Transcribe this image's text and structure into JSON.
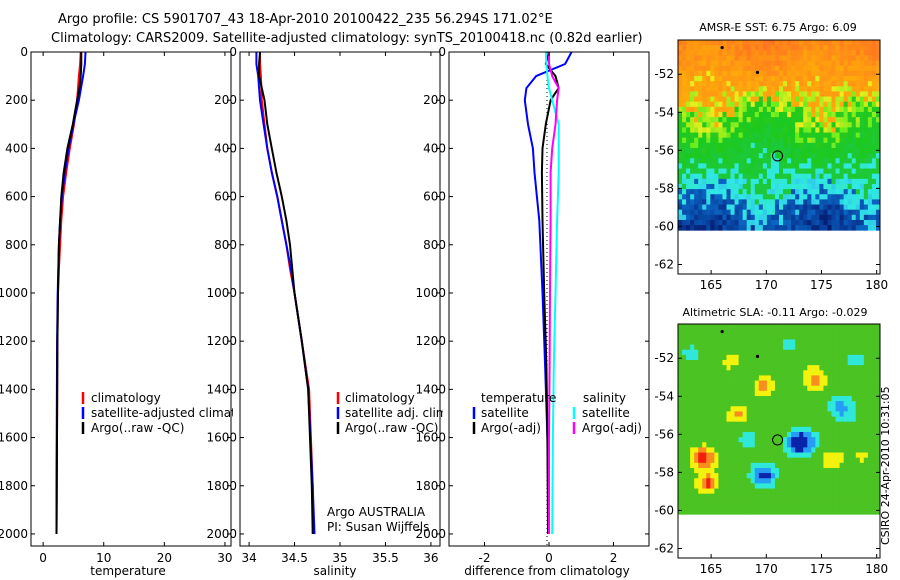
{
  "title": {
    "line1": "Argo profile: CS 5901707_43 18-Apr-2010 20100422_235 56.294S 171.02°E",
    "line2": "Climatology: CARS2009. Satellite-adjusted climatology: synTS_20100418.nc (0.82d earlier)"
  },
  "colors": {
    "climatology": "#ff0000",
    "satellite": "#0000ff",
    "argo": "#000000",
    "satellite_salinity": "#00ffff",
    "argo_salinity_diff": "#ff00ff",
    "frame": "#000000"
  },
  "depth_axis": {
    "ticks": [
      "0",
      "200",
      "400",
      "600",
      "800",
      "1000",
      "1200",
      "1400",
      "1600",
      "1800",
      "2000"
    ]
  },
  "footer": {
    "operator": "Argo AUSTRALIA",
    "pi": "PI: Susan Wijffels",
    "stamp": "CSIRO 24-Apr-2010 10:31:05"
  },
  "chart_data": [
    {
      "id": "temperature",
      "type": "line",
      "xlabel": "temperature",
      "ylabel": "",
      "xlim": [
        -2,
        31
      ],
      "ylim": [
        0,
        2050
      ],
      "y_inverted": true,
      "xticks": [
        "0",
        "10",
        "20",
        "30"
      ],
      "legend": {
        "placement": "bottom",
        "entries": [
          "climatology",
          "satellite-adjusted climatology",
          "Argo(..raw -QC)"
        ]
      },
      "series": [
        {
          "name": "climatology",
          "color_key": "climatology",
          "x": [
            6.2,
            6.1,
            5.9,
            5.6,
            5.1,
            4.4,
            3.8,
            3.3,
            3.0,
            2.8,
            2.6,
            2.45,
            2.35,
            2.3,
            2.25,
            2.2
          ],
          "y": [
            0,
            50,
            100,
            200,
            300,
            400,
            500,
            600,
            700,
            800,
            900,
            1000,
            1200,
            1500,
            1800,
            2000
          ]
        },
        {
          "name": "satellite-adjusted climatology",
          "color_key": "satellite",
          "x": [
            7.0,
            6.9,
            6.6,
            5.9,
            5.0,
            4.2,
            3.6,
            3.1,
            2.8,
            2.6,
            2.5,
            2.4,
            2.3,
            2.25,
            2.2,
            2.2
          ],
          "y": [
            0,
            50,
            100,
            200,
            300,
            400,
            500,
            600,
            700,
            800,
            900,
            1000,
            1200,
            1500,
            1800,
            2000
          ]
        },
        {
          "name": "Argo(..raw -QC)",
          "color_key": "argo",
          "x": [
            6.3,
            6.3,
            6.2,
            6.0,
            5.6,
            4.9,
            4.0,
            3.4,
            3.0,
            2.8,
            2.6,
            2.45,
            2.35,
            2.3,
            2.25,
            2.2
          ],
          "y": [
            0,
            50,
            100,
            150,
            200,
            300,
            400,
            500,
            600,
            700,
            800,
            1000,
            1200,
            1500,
            1800,
            2000
          ]
        }
      ]
    },
    {
      "id": "salinity",
      "type": "line",
      "xlabel": "salinity",
      "ylabel": "",
      "xlim": [
        33.9,
        36.1
      ],
      "ylim": [
        0,
        2050
      ],
      "y_inverted": true,
      "xticks": [
        "34",
        "34.5",
        "35",
        "35.5",
        "36"
      ],
      "legend": {
        "placement": "bottom",
        "entries": [
          "climatology",
          "satellite adj. clim.",
          "Argo(..raw -QC)"
        ]
      },
      "series": [
        {
          "name": "climatology",
          "color_key": "climatology",
          "x": [
            34.12,
            34.12,
            34.13,
            34.14,
            34.17,
            34.2,
            34.25,
            34.31,
            34.36,
            34.41,
            34.45,
            34.5,
            34.58,
            34.66,
            34.7,
            34.71
          ],
          "y": [
            0,
            50,
            100,
            200,
            300,
            400,
            500,
            600,
            700,
            800,
            900,
            1000,
            1200,
            1400,
            1800,
            2000
          ]
        },
        {
          "name": "satellite adj. clim.",
          "color_key": "satellite",
          "x": [
            34.08,
            34.08,
            34.1,
            34.12,
            34.16,
            34.2,
            34.25,
            34.31,
            34.36,
            34.41,
            34.46,
            34.5,
            34.58,
            34.65,
            34.7,
            34.72
          ],
          "y": [
            0,
            50,
            100,
            200,
            300,
            400,
            500,
            600,
            700,
            800,
            900,
            1000,
            1200,
            1400,
            1800,
            2000
          ]
        },
        {
          "name": "Argo(..raw -QC)",
          "color_key": "argo",
          "x": [
            34.12,
            34.11,
            34.11,
            34.14,
            34.17,
            34.2,
            34.25,
            34.3,
            34.36,
            34.41,
            34.45,
            34.5,
            34.58,
            34.65,
            34.69,
            34.7
          ],
          "y": [
            0,
            50,
            100,
            150,
            200,
            300,
            400,
            500,
            600,
            700,
            800,
            1000,
            1200,
            1400,
            1800,
            2000
          ]
        }
      ]
    },
    {
      "id": "difference",
      "type": "line",
      "xlabel": "difference from climatology",
      "ylabel": "",
      "xlim": [
        -3.1,
        3.1
      ],
      "ylim": [
        0,
        2050
      ],
      "y_inverted": true,
      "xticks": [
        "-2",
        "0",
        "2"
      ],
      "legend": {
        "placement": "bottom",
        "headers": [
          "temperature",
          "salinity"
        ],
        "entries": [
          "satellite",
          "Argo(-adj)",
          "satellite",
          "Argo(-adj)"
        ]
      },
      "series": [
        {
          "name": "temperature satellite",
          "color_key": "satellite",
          "x": [
            0.7,
            0.5,
            -0.4,
            -0.7,
            -0.75,
            -0.65,
            -0.5,
            -0.45,
            -0.3,
            -0.2,
            -0.12,
            -0.05,
            0.0
          ],
          "y": [
            0,
            50,
            100,
            150,
            200,
            300,
            400,
            500,
            700,
            1000,
            1300,
            1600,
            2000
          ]
        },
        {
          "name": "temperature Argo(-adj)",
          "color_key": "argo",
          "x": [
            0.0,
            -0.1,
            0.2,
            0.3,
            0.05,
            -0.1,
            -0.2,
            -0.22,
            -0.2,
            -0.15,
            -0.08,
            -0.05,
            -0.03
          ],
          "y": [
            0,
            50,
            100,
            150,
            200,
            300,
            400,
            500,
            700,
            1000,
            1300,
            1600,
            2000
          ]
        },
        {
          "name": "salinity satellite",
          "color_key": "satellite_salinity",
          "x": [
            -0.1,
            -0.08,
            -0.05,
            0.0,
            0.1,
            0.3,
            0.3,
            0.3,
            0.25,
            0.2,
            0.15,
            0.12,
            0.1
          ],
          "y": [
            0,
            50,
            100,
            150,
            200,
            300,
            400,
            500,
            700,
            1000,
            1300,
            1600,
            2000
          ]
        },
        {
          "name": "salinity Argo(-adj)",
          "color_key": "argo_salinity_diff",
          "x": [
            0.0,
            0.0,
            0.1,
            0.3,
            0.25,
            0.2,
            0.1,
            0.05,
            0.05,
            0.03,
            0.02,
            0.0,
            0.0
          ],
          "y": [
            0,
            50,
            100,
            150,
            200,
            300,
            400,
            500,
            700,
            1000,
            1300,
            1600,
            2000
          ]
        }
      ]
    },
    {
      "id": "sst_map",
      "type": "heatmap",
      "title": "AMSR-E SST: 6.75 Argo: 6.09",
      "xlim": [
        162,
        180.3
      ],
      "ylim": [
        -62.5,
        -50.2
      ],
      "data_lat_min": -60.2,
      "xticks": [
        "165",
        "170",
        "175",
        "180"
      ],
      "yticks": [
        "-52",
        "-54",
        "-56",
        "-58",
        "-60",
        "-62"
      ],
      "float_position": [
        171.02,
        -56.294
      ],
      "track_points": [
        [
          166.0,
          -50.6
        ],
        [
          169.2,
          -51.9
        ]
      ]
    },
    {
      "id": "sla_map",
      "type": "heatmap",
      "title": "Altimetric SLA: -0.11 Argo: -0.029",
      "xlim": [
        162,
        180.3
      ],
      "ylim": [
        -62.5,
        -50.2
      ],
      "data_lat_min": -60.2,
      "xticks": [
        "165",
        "170",
        "175",
        "180"
      ],
      "yticks": [
        "-52",
        "-54",
        "-56",
        "-58",
        "-60",
        "-62"
      ],
      "float_position": [
        171.02,
        -56.294
      ],
      "track_points": [
        [
          166.0,
          -50.6
        ],
        [
          169.2,
          -51.9
        ]
      ]
    }
  ]
}
